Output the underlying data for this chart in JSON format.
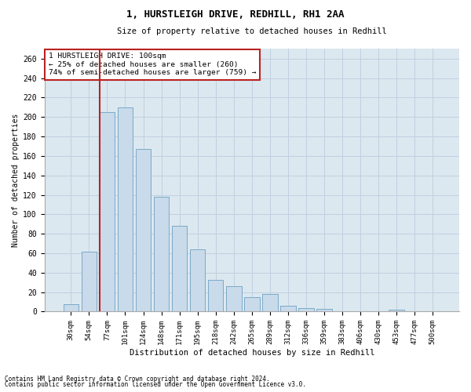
{
  "title1": "1, HURSTLEIGH DRIVE, REDHILL, RH1 2AA",
  "title2": "Size of property relative to detached houses in Redhill",
  "xlabel": "Distribution of detached houses by size in Redhill",
  "ylabel": "Number of detached properties",
  "footnote1": "Contains HM Land Registry data © Crown copyright and database right 2024.",
  "footnote2": "Contains public sector information licensed under the Open Government Licence v3.0.",
  "categories": [
    "30sqm",
    "54sqm",
    "77sqm",
    "101sqm",
    "124sqm",
    "148sqm",
    "171sqm",
    "195sqm",
    "218sqm",
    "242sqm",
    "265sqm",
    "289sqm",
    "312sqm",
    "336sqm",
    "359sqm",
    "383sqm",
    "406sqm",
    "430sqm",
    "453sqm",
    "477sqm",
    "500sqm"
  ],
  "values": [
    8,
    62,
    205,
    210,
    167,
    118,
    88,
    64,
    33,
    26,
    15,
    18,
    6,
    4,
    3,
    0,
    0,
    0,
    2,
    0,
    0
  ],
  "bar_color": "#c9daea",
  "bar_edgecolor": "#7aaac8",
  "grid_color": "#c0d0e0",
  "background_color": "#dce8f0",
  "annotation_line1": "1 HURSTLEIGH DRIVE: 100sqm",
  "annotation_line2": "← 25% of detached houses are smaller (260)",
  "annotation_line3": "74% of semi-detached houses are larger (759) →",
  "annotation_box_color": "#bb2222",
  "ylim": [
    0,
    270
  ],
  "yticks": [
    0,
    20,
    40,
    60,
    80,
    100,
    120,
    140,
    160,
    180,
    200,
    220,
    240,
    260
  ],
  "prop_line_bin": 2
}
